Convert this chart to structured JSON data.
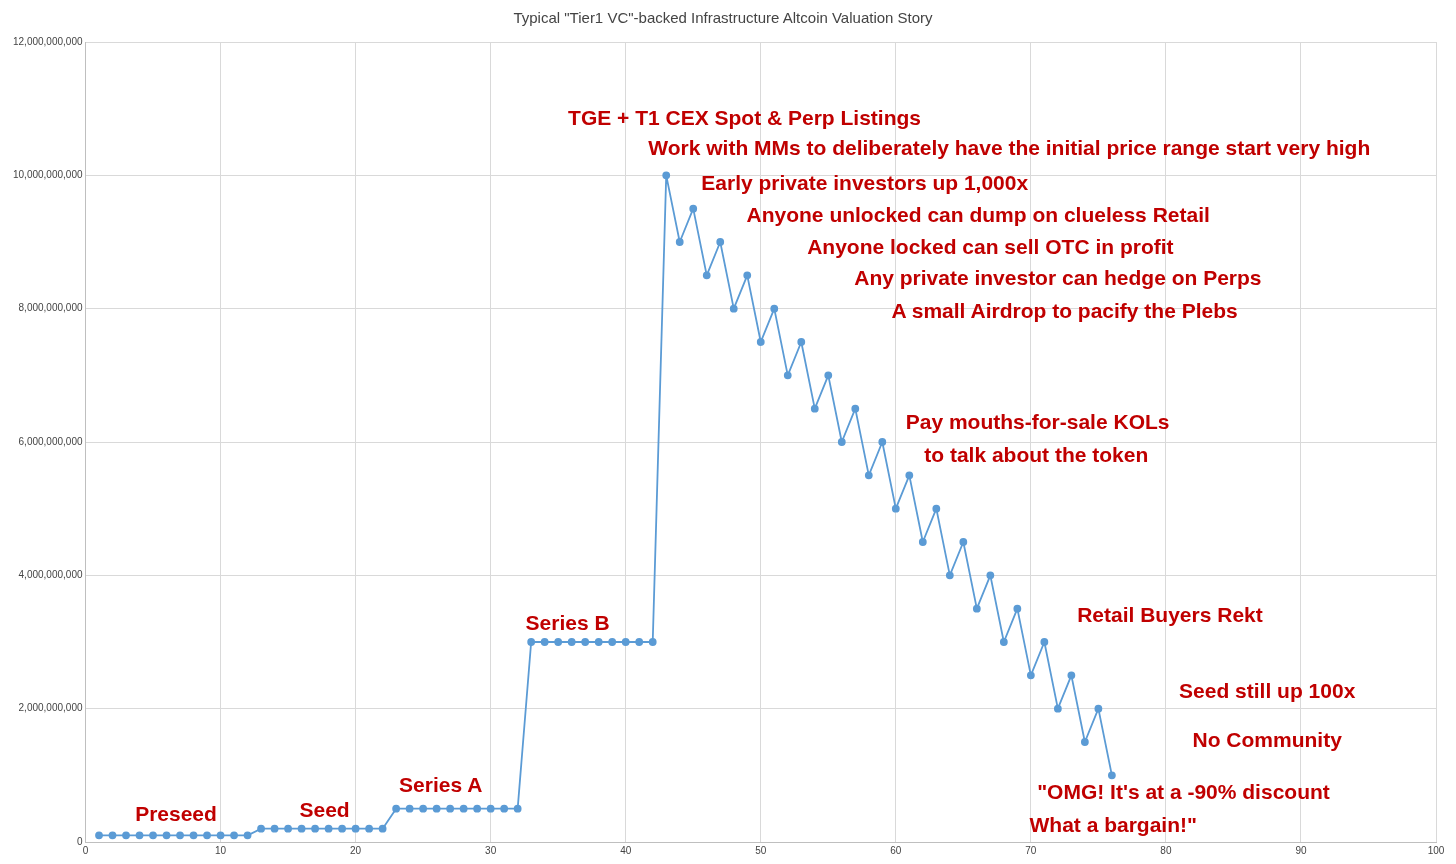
{
  "chart_data": {
    "type": "line",
    "title": "Typical \"Tier1 VC\"-backed Infrastructure Altcoin Valuation Story",
    "x": [
      1,
      2,
      3,
      4,
      5,
      6,
      7,
      8,
      9,
      10,
      11,
      12,
      13,
      14,
      15,
      16,
      17,
      18,
      19,
      20,
      21,
      22,
      23,
      24,
      25,
      26,
      27,
      28,
      29,
      30,
      31,
      32,
      33,
      34,
      35,
      36,
      37,
      38,
      39,
      40,
      41,
      42,
      43,
      44,
      45,
      46,
      47,
      48,
      49,
      50,
      51,
      52,
      53,
      54,
      55,
      56,
      57,
      58,
      59,
      60,
      61,
      62,
      63,
      64,
      65,
      66,
      67,
      68,
      69,
      70,
      71,
      72,
      73,
      74,
      75,
      76
    ],
    "series": [
      {
        "color": "#5b9bd5",
        "values": [
          100000000,
          100000000,
          100000000,
          100000000,
          100000000,
          100000000,
          100000000,
          100000000,
          100000000,
          100000000,
          100000000,
          100000000,
          200000000,
          200000000,
          200000000,
          200000000,
          200000000,
          200000000,
          200000000,
          200000000,
          200000000,
          200000000,
          500000000,
          500000000,
          500000000,
          500000000,
          500000000,
          500000000,
          500000000,
          500000000,
          500000000,
          500000000,
          3000000000,
          3000000000,
          3000000000,
          3000000000,
          3000000000,
          3000000000,
          3000000000,
          3000000000,
          3000000000,
          3000000000,
          10000000000,
          9000000000,
          9500000000,
          8500000000,
          9000000000,
          8000000000,
          8500000000,
          7500000000,
          8000000000,
          7000000000,
          7500000000,
          6500000000,
          7000000000,
          6000000000,
          6500000000,
          5500000000,
          6000000000,
          5000000000,
          5500000000,
          4500000000,
          5000000000,
          4000000000,
          4500000000,
          3500000000,
          4000000000,
          3000000000,
          3500000000,
          2500000000,
          3000000000,
          2000000000,
          2500000000,
          1500000000,
          2000000000,
          1000000000
        ]
      }
    ],
    "xlim": [
      0,
      100
    ],
    "xticks": [
      0,
      10,
      20,
      30,
      40,
      50,
      60,
      70,
      80,
      90,
      100
    ],
    "ylim": [
      0,
      12000000000
    ],
    "yticks": [
      {
        "value": 0,
        "label": "0"
      },
      {
        "value": 2000000000,
        "label": "2,000,000,000"
      },
      {
        "value": 4000000000,
        "label": "4,000,000,000"
      },
      {
        "value": 6000000000,
        "label": "6,000,000,000"
      },
      {
        "value": 8000000000,
        "label": "8,000,000,000"
      },
      {
        "value": 10000000000,
        "label": "10,000,000,000"
      },
      {
        "value": 12000000000,
        "label": "12,000,000,000"
      }
    ],
    "grid": true,
    "marker": "circle",
    "line_style": "solid",
    "annotations": [
      "Preseed",
      "Seed",
      "Series A",
      "Series B",
      "TGE + T1 CEX Spot & Perp Listings",
      "Work with MMs to deliberately have the initial price range start very high",
      "Early private investors up 1,000x",
      "Anyone unlocked can dump on clueless Retail",
      "Anyone locked can sell OTC in profit",
      "Any private investor can hedge on Perps",
      "A small Airdrop to pacify the Plebs",
      "Pay mouths-for-sale KOLs",
      "to talk about the token",
      "Retail Buyers Rekt",
      "Seed still up 100x",
      "No Community",
      "\"OMG! It's at a -90% discount",
      "What a bargain!\""
    ]
  }
}
